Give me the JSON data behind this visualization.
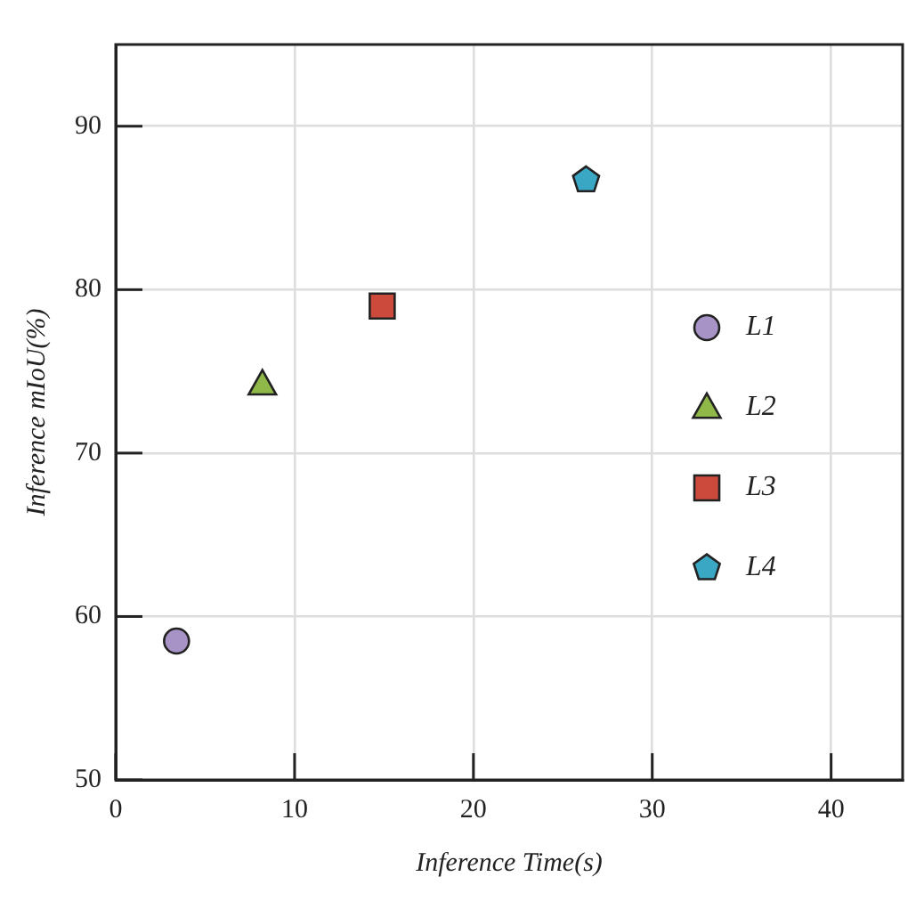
{
  "chart_data": {
    "type": "scatter",
    "xlabel": "Inference Time(s)",
    "ylabel": "Inference mIoU(%)",
    "series": [
      {
        "name": "L1",
        "color": "#a893c6",
        "marker": "circle",
        "x": [
          3.4
        ],
        "values": [
          58.5
        ]
      },
      {
        "name": "L2",
        "color": "#8fb848",
        "marker": "triangle",
        "x": [
          8.2
        ],
        "values": [
          74.2
        ]
      },
      {
        "name": "L3",
        "color": "#cc4a3c",
        "marker": "square",
        "x": [
          14.9
        ],
        "values": [
          79.0
        ]
      },
      {
        "name": "L4",
        "color": "#3aa7c4",
        "x": [
          26.3
        ],
        "values": [
          86.7
        ]
      }
    ],
    "xlim": [
      0,
      44
    ],
    "xticks": [
      0,
      10,
      20,
      30,
      40
    ],
    "ylim": [
      50,
      95
    ],
    "yticks": [
      50,
      60,
      70,
      80,
      90
    ],
    "grid": true,
    "legend": "right"
  }
}
